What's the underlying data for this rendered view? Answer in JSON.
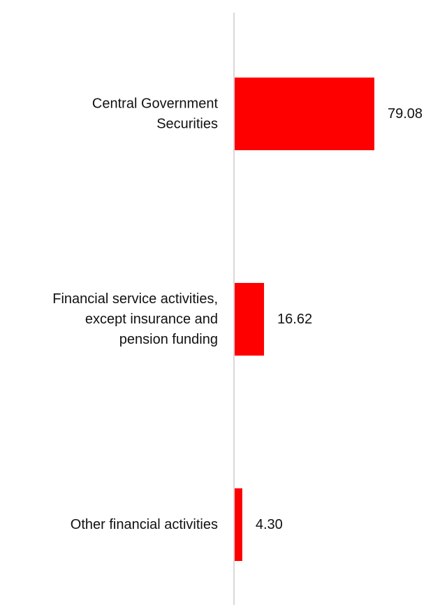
{
  "chart_data": {
    "type": "bar",
    "orientation": "horizontal",
    "categories": [
      "Central Government Securities",
      "Financial service activities, except insurance and pension funding",
      "Other financial activities"
    ],
    "category_label_lines": [
      [
        "Central Government",
        "Securities"
      ],
      [
        "Financial service activities,",
        "except insurance and",
        "pension funding"
      ],
      [
        "Other financial activities"
      ]
    ],
    "values": [
      79.08,
      16.62,
      4.3
    ],
    "value_labels": [
      "79.08",
      "16.62",
      "4.30"
    ],
    "xlim": [
      0,
      100
    ],
    "grid": false,
    "legend": "none",
    "bar_color": "#ff0000",
    "axis_color": "#d9d9d9"
  }
}
